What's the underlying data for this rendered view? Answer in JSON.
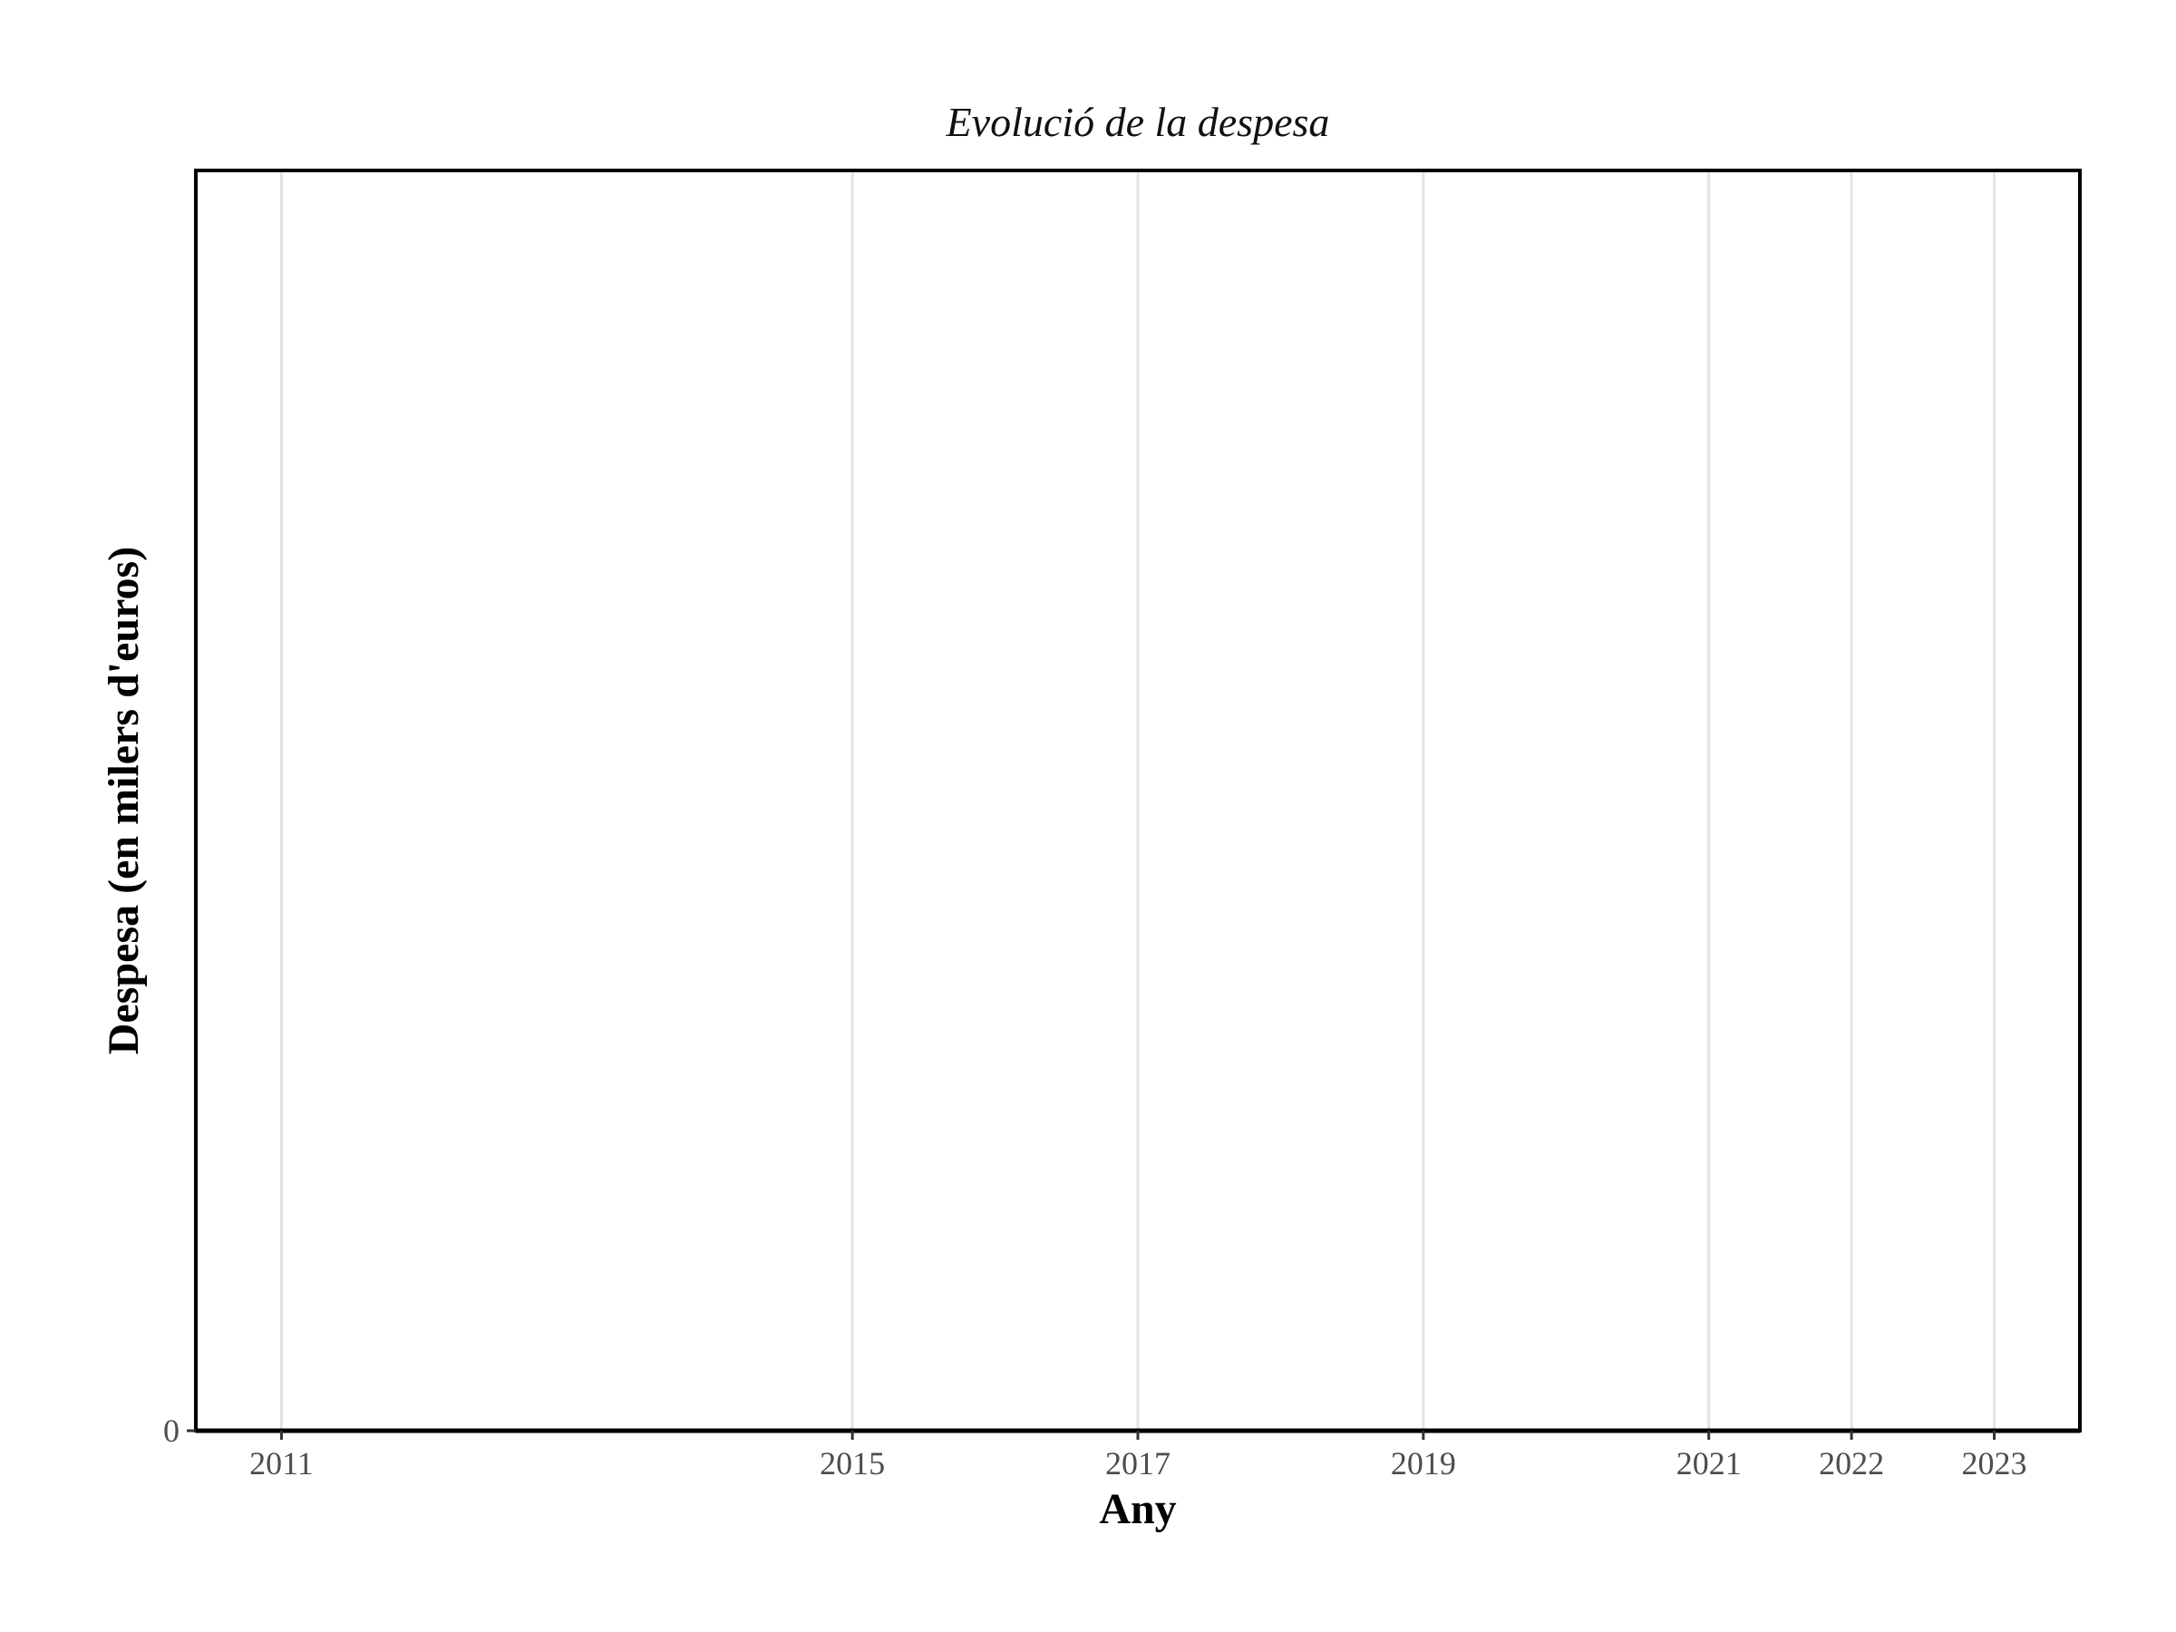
{
  "chart_data": {
    "type": "line",
    "title": "Evolució de la despesa",
    "xlabel": "Any",
    "ylabel": "Despesa (en milers d'euros)",
    "x_ticks": [
      2011,
      2015,
      2017,
      2019,
      2021,
      2022,
      2023
    ],
    "xlim": [
      2010.4,
      2023.6
    ],
    "y_ticks": [
      0
    ],
    "ylim": [
      0,
      1
    ],
    "grid": {
      "vertical": true,
      "horizontal": false
    },
    "series": []
  },
  "colors": {
    "grid": "#e3e3e3",
    "axis": "#000000",
    "tick_text": "#4d4d4d"
  }
}
